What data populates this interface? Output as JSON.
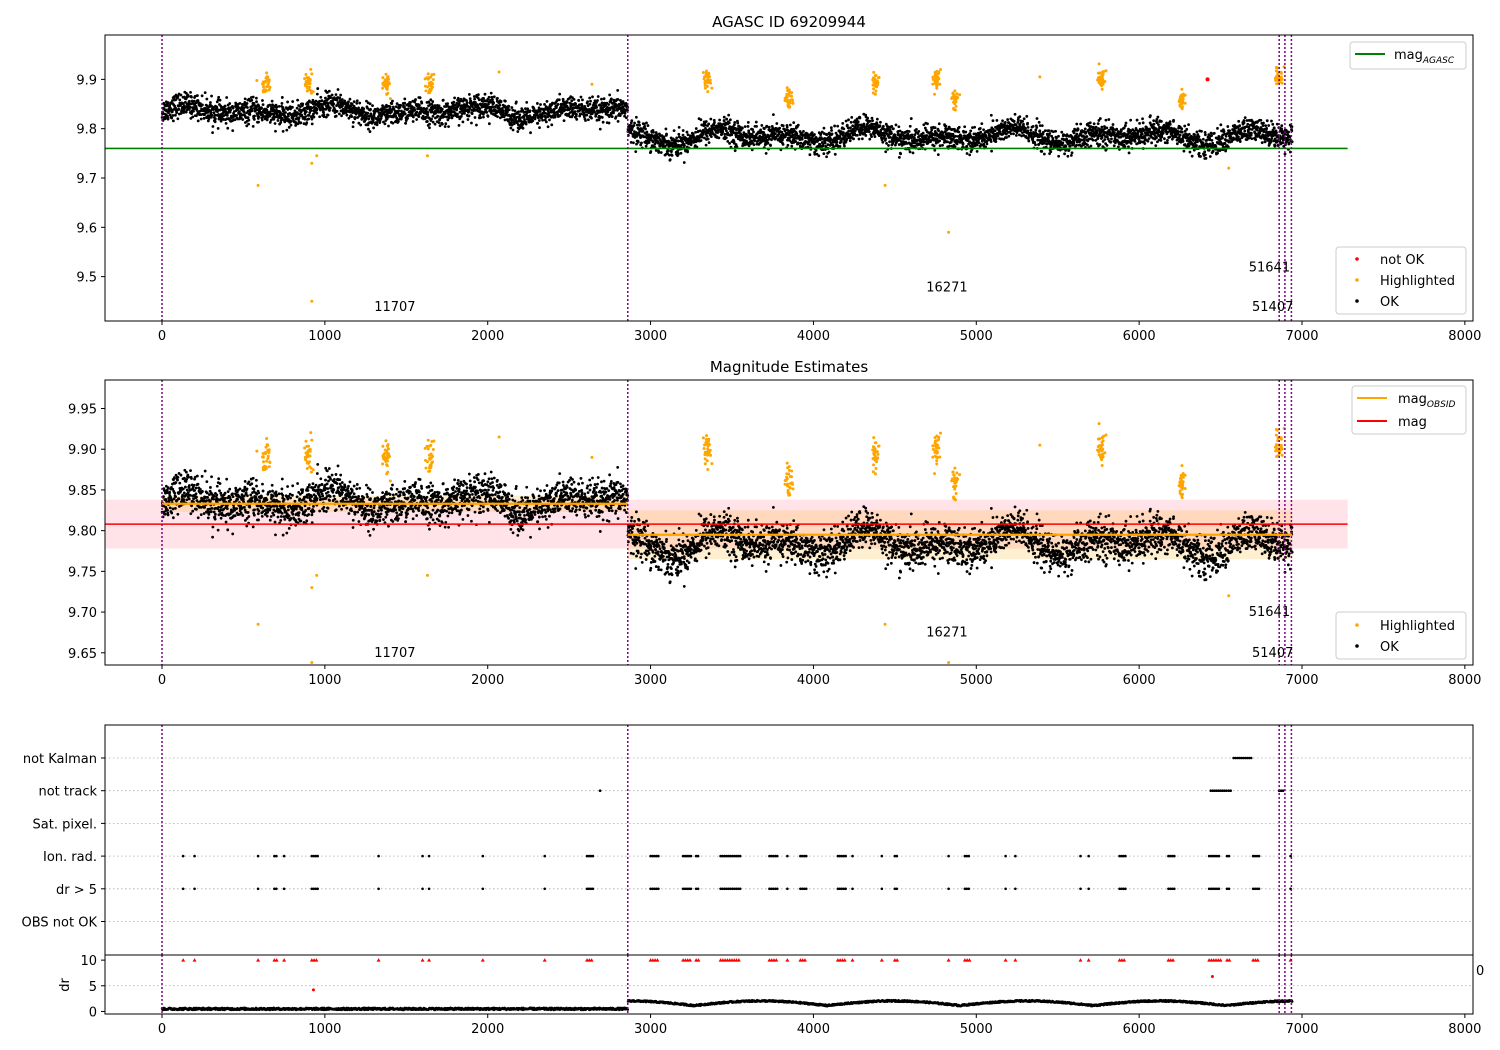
{
  "colors": {
    "ok": "#000000",
    "highlighted": "#ffa500",
    "not_ok": "#ff0000",
    "agasc": "#008000",
    "mag": "#ff0000",
    "mag_obsid": "#ffa500",
    "obs_line": "#800080",
    "band_mag": "#ffc0cb"
  },
  "chart_data": [
    {
      "type": "scatter",
      "title": "AGASC ID 69209944",
      "xlabel": "",
      "ylabel": "",
      "xlim": [
        -350,
        8050
      ],
      "ylim": [
        9.41,
        9.99
      ],
      "x_ticks": [
        0,
        1000,
        2000,
        3000,
        4000,
        5000,
        6000,
        7000,
        8000
      ],
      "y_ticks": [
        9.5,
        9.6,
        9.7,
        9.8,
        9.9
      ],
      "legend_lines": [
        {
          "label": "mag",
          "sub": "AGASC"
        }
      ],
      "legend_points": [
        "not OK",
        "Highlighted",
        "OK"
      ],
      "reference_lines": [
        {
          "name": "mag_AGASC",
          "y": 9.76,
          "x": [
            -350,
            7280
          ]
        }
      ],
      "obs_markers_x": [
        0,
        2860,
        6860,
        6895,
        6935
      ],
      "annotations": [
        {
          "text": "11707",
          "x": 1430,
          "y": 9.43
        },
        {
          "text": "16271",
          "x": 4820,
          "y": 9.47
        },
        {
          "text": "51641",
          "x": 6800,
          "y": 9.51
        },
        {
          "text": "51407",
          "x": 6820,
          "y": 9.43
        }
      ],
      "series": [
        {
          "segments": [
            {
              "x": [
                0,
                2860
              ],
              "mean": 9.835,
              "amp": 0.015,
              "noise": 0.012
            },
            {
              "x": [
                2860,
                6940
              ],
              "mean": 9.785,
              "amp": 0.018,
              "noise": 0.012
            }
          ]
        },
        {
          "name": "Highlighted",
          "clusters": [
            {
              "x": 640,
              "y": 9.89
            },
            {
              "x": 900,
              "y": 9.895
            },
            {
              "x": 1380,
              "y": 9.89
            },
            {
              "x": 1640,
              "y": 9.89
            },
            {
              "x": 3350,
              "y": 9.9
            },
            {
              "x": 3850,
              "y": 9.86
            },
            {
              "x": 4380,
              "y": 9.89
            },
            {
              "x": 4750,
              "y": 9.9
            },
            {
              "x": 4870,
              "y": 9.86
            },
            {
              "x": 5770,
              "y": 9.9
            },
            {
              "x": 6260,
              "y": 9.86
            },
            {
              "x": 6860,
              "y": 9.905
            }
          ],
          "outliers": [
            {
              "x": 590,
              "y": 9.685
            },
            {
              "x": 920,
              "y": 9.73
            },
            {
              "x": 950,
              "y": 9.745
            },
            {
              "x": 1630,
              "y": 9.745
            },
            {
              "x": 920,
              "y": 9.45
            },
            {
              "x": 4440,
              "y": 9.685
            },
            {
              "x": 4830,
              "y": 9.59
            },
            {
              "x": 6550,
              "y": 9.72
            },
            {
              "x": 2070,
              "y": 9.915
            },
            {
              "x": 5390,
              "y": 9.905
            },
            {
              "x": 2640,
              "y": 9.89
            }
          ]
        },
        {
          "name": "not OK",
          "points": [
            {
              "x": 6420,
              "y": 9.9
            }
          ]
        }
      ]
    },
    {
      "type": "scatter",
      "title": "Magnitude Estimates",
      "xlabel": "",
      "ylabel": "",
      "xlim": [
        -350,
        8050
      ],
      "ylim": [
        9.635,
        9.985
      ],
      "x_ticks": [
        0,
        1000,
        2000,
        3000,
        4000,
        5000,
        6000,
        7000,
        8000
      ],
      "y_ticks": [
        9.65,
        9.7,
        9.75,
        9.8,
        9.85,
        9.9,
        9.95
      ],
      "legend_lines": [
        {
          "label": "mag",
          "sub": "OBSID"
        },
        {
          "label": "mag",
          "sub": ""
        }
      ],
      "legend_points": [
        "Highlighted",
        "OK"
      ],
      "mag": {
        "y": 9.808,
        "band": [
          9.778,
          9.838
        ],
        "x": [
          -350,
          7280
        ]
      },
      "mag_obsid": [
        {
          "x": [
            0,
            2860
          ],
          "y": 9.833,
          "band": [
            9.823,
            9.843
          ]
        },
        {
          "x": [
            2860,
            6940
          ],
          "y": 9.795,
          "band": [
            9.765,
            9.825
          ]
        }
      ],
      "obs_markers_x": [
        0,
        2860,
        6860,
        6895,
        6935
      ],
      "annotations": [
        {
          "text": "11707",
          "x": 1430,
          "y": 9.645
        },
        {
          "text": "16271",
          "x": 4820,
          "y": 9.67
        },
        {
          "text": "51641",
          "x": 6800,
          "y": 9.695
        },
        {
          "text": "51407",
          "x": 6820,
          "y": 9.645
        }
      ]
    },
    {
      "type": "scatter",
      "title": "",
      "xlim": [
        -350,
        8050
      ],
      "x_ticks": [
        0,
        1000,
        2000,
        3000,
        4000,
        5000,
        6000,
        7000,
        8000
      ],
      "flag_rows": [
        "not Kalman",
        "not track",
        "Sat. pixel.",
        "Ion. rad.",
        "dr > 5",
        "OBS not OK"
      ],
      "dr": {
        "ylabel": "dr",
        "ylim": [
          -0.5,
          11
        ],
        "y_ticks": [
          0,
          5,
          10
        ]
      },
      "edge_tick_label": "0",
      "obs_markers_x": [
        0,
        2860,
        6860,
        6895,
        6935
      ],
      "flag_events": {
        "not Kalman": [
          [
            6580,
            6690
          ]
        ],
        "not track": [
          [
            2690,
            2700
          ],
          [
            6440,
            6540
          ],
          [
            6550,
            6570
          ],
          [
            6860,
            6890
          ]
        ],
        "Sat. pixel.": [],
        "Ion. rad.": [
          [
            130,
            135
          ],
          [
            200,
            205
          ],
          [
            590,
            600
          ],
          [
            690,
            710
          ],
          [
            750,
            760
          ],
          [
            920,
            960
          ],
          [
            1330,
            1335
          ],
          [
            1600,
            1610
          ],
          [
            1640,
            1650
          ],
          [
            1970,
            1975
          ],
          [
            2350,
            2355
          ],
          [
            2610,
            2650
          ],
          [
            3000,
            3050
          ],
          [
            3200,
            3250
          ],
          [
            3280,
            3300
          ],
          [
            3430,
            3550
          ],
          [
            3730,
            3780
          ],
          [
            3840,
            3850
          ],
          [
            3920,
            3960
          ],
          [
            4150,
            4200
          ],
          [
            4240,
            4250
          ],
          [
            4420,
            4430
          ],
          [
            4500,
            4520
          ],
          [
            4830,
            4840
          ],
          [
            4930,
            4960
          ],
          [
            5180,
            5190
          ],
          [
            5240,
            5250
          ],
          [
            5640,
            5650
          ],
          [
            5690,
            5700
          ],
          [
            5880,
            5920
          ],
          [
            6180,
            6220
          ],
          [
            6430,
            6500
          ],
          [
            6540,
            6560
          ],
          [
            6700,
            6740
          ],
          [
            6930,
            6940
          ]
        ],
        "dr > 5": [
          [
            130,
            135
          ],
          [
            200,
            205
          ],
          [
            590,
            600
          ],
          [
            690,
            710
          ],
          [
            750,
            760
          ],
          [
            920,
            960
          ],
          [
            1330,
            1335
          ],
          [
            1600,
            1610
          ],
          [
            1640,
            1650
          ],
          [
            1970,
            1975
          ],
          [
            2350,
            2355
          ],
          [
            2610,
            2650
          ],
          [
            3000,
            3050
          ],
          [
            3200,
            3250
          ],
          [
            3280,
            3300
          ],
          [
            3430,
            3550
          ],
          [
            3730,
            3780
          ],
          [
            3840,
            3850
          ],
          [
            3920,
            3960
          ],
          [
            4150,
            4200
          ],
          [
            4240,
            4250
          ],
          [
            4420,
            4430
          ],
          [
            4500,
            4520
          ],
          [
            4830,
            4840
          ],
          [
            4930,
            4960
          ],
          [
            5180,
            5190
          ],
          [
            5240,
            5250
          ],
          [
            5640,
            5650
          ],
          [
            5690,
            5700
          ],
          [
            5880,
            5920
          ],
          [
            6180,
            6220
          ],
          [
            6430,
            6500
          ],
          [
            6540,
            6560
          ],
          [
            6700,
            6740
          ],
          [
            6930,
            6940
          ]
        ],
        "OBS not OK": []
      }
    }
  ]
}
